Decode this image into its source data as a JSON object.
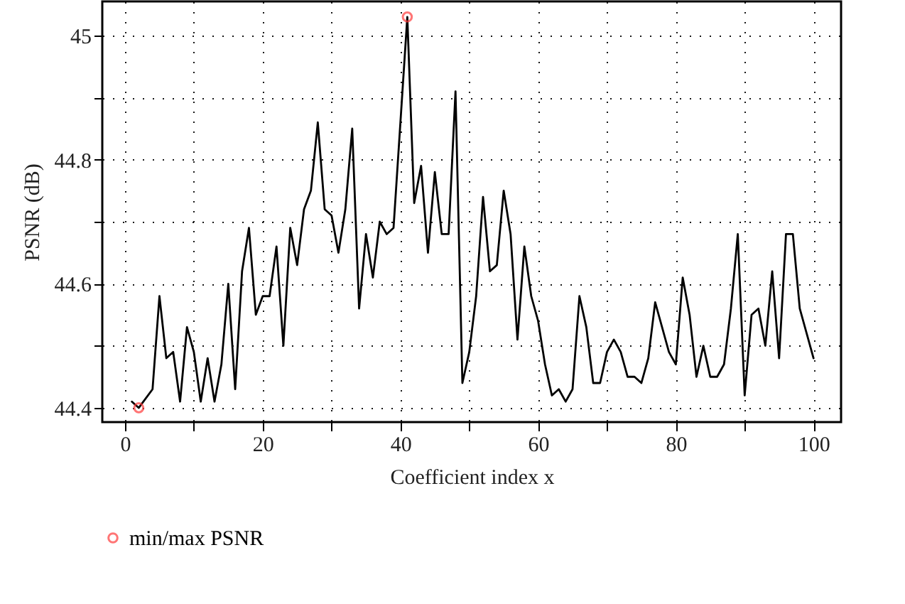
{
  "chart_data": {
    "type": "line",
    "xlabel": "Coefficient index x",
    "ylabel": "PSNR (dB)",
    "xlim": [
      -3.3,
      104
    ],
    "ylim": [
      44.377,
      45.055
    ],
    "xticks": [
      0,
      {
        "value": 10,
        "label": null
      },
      20,
      {
        "value": 30,
        "label": null
      },
      40,
      {
        "value": 50,
        "label": null
      },
      60,
      {
        "value": 70,
        "label": null
      },
      80,
      {
        "value": 90,
        "label": null
      },
      100
    ],
    "yticks": [
      44.4,
      {
        "value": 44.5,
        "label": null
      },
      44.6,
      {
        "value": 44.7,
        "label": null
      },
      44.8,
      {
        "value": 44.9,
        "label": null
      },
      45
    ],
    "grid": true,
    "legend": "bottom",
    "series": [
      {
        "type": "line",
        "color": "#000000",
        "line_style": "solid",
        "marker": "none",
        "x": [
          1,
          2,
          4,
          5,
          6,
          7,
          8,
          9,
          10,
          11,
          12,
          13,
          14,
          15,
          16,
          17,
          18,
          19,
          20,
          21,
          22,
          23,
          24,
          25,
          26,
          27,
          28,
          29,
          30,
          31,
          32,
          33,
          34,
          35,
          36,
          37,
          38,
          39,
          41,
          42,
          43,
          44,
          45,
          46,
          47,
          48,
          49,
          50,
          51,
          52,
          53,
          54,
          55,
          56,
          57,
          58,
          59,
          60,
          61,
          62,
          63,
          64,
          65,
          66,
          67,
          68,
          69,
          70,
          71,
          72,
          73,
          74,
          75,
          76,
          77,
          78,
          79,
          80,
          81,
          82,
          83,
          84,
          85,
          86,
          87,
          88,
          89,
          90,
          91,
          92,
          93,
          94,
          95,
          96,
          97,
          98,
          99,
          100
        ],
        "values": [
          44.41,
          44.4,
          44.43,
          44.58,
          44.48,
          44.49,
          44.41,
          44.53,
          44.49,
          44.41,
          44.48,
          44.41,
          44.47,
          44.6,
          44.43,
          44.62,
          44.69,
          44.55,
          44.58,
          44.58,
          44.66,
          44.5,
          44.69,
          44.63,
          44.72,
          44.75,
          44.86,
          44.72,
          44.71,
          44.65,
          44.72,
          44.85,
          44.56,
          44.68,
          44.61,
          44.7,
          44.68,
          44.69,
          45.03,
          44.73,
          44.79,
          44.65,
          44.78,
          44.68,
          44.68,
          44.91,
          44.44,
          44.49,
          44.58,
          44.74,
          44.62,
          44.63,
          44.75,
          44.68,
          44.51,
          44.66,
          44.58,
          44.54,
          44.47,
          44.42,
          44.43,
          44.41,
          44.43,
          44.58,
          44.53,
          44.44,
          44.44,
          44.49,
          44.51,
          44.49,
          44.45,
          44.45,
          44.44,
          44.48,
          44.57,
          44.53,
          44.49,
          44.47,
          44.61,
          44.55,
          44.45,
          44.5,
          44.45,
          44.45,
          44.47,
          44.56,
          44.68,
          44.42,
          44.55,
          44.56,
          44.5,
          44.62,
          44.48,
          44.68,
          44.68,
          44.56,
          44.52,
          44.48
        ]
      },
      {
        "type": "scatter",
        "name": "min/max PSNR",
        "color": "#ff3b3b",
        "marker": "circle",
        "x": [
          2,
          41
        ],
        "values": [
          44.4,
          45.03
        ]
      }
    ]
  }
}
